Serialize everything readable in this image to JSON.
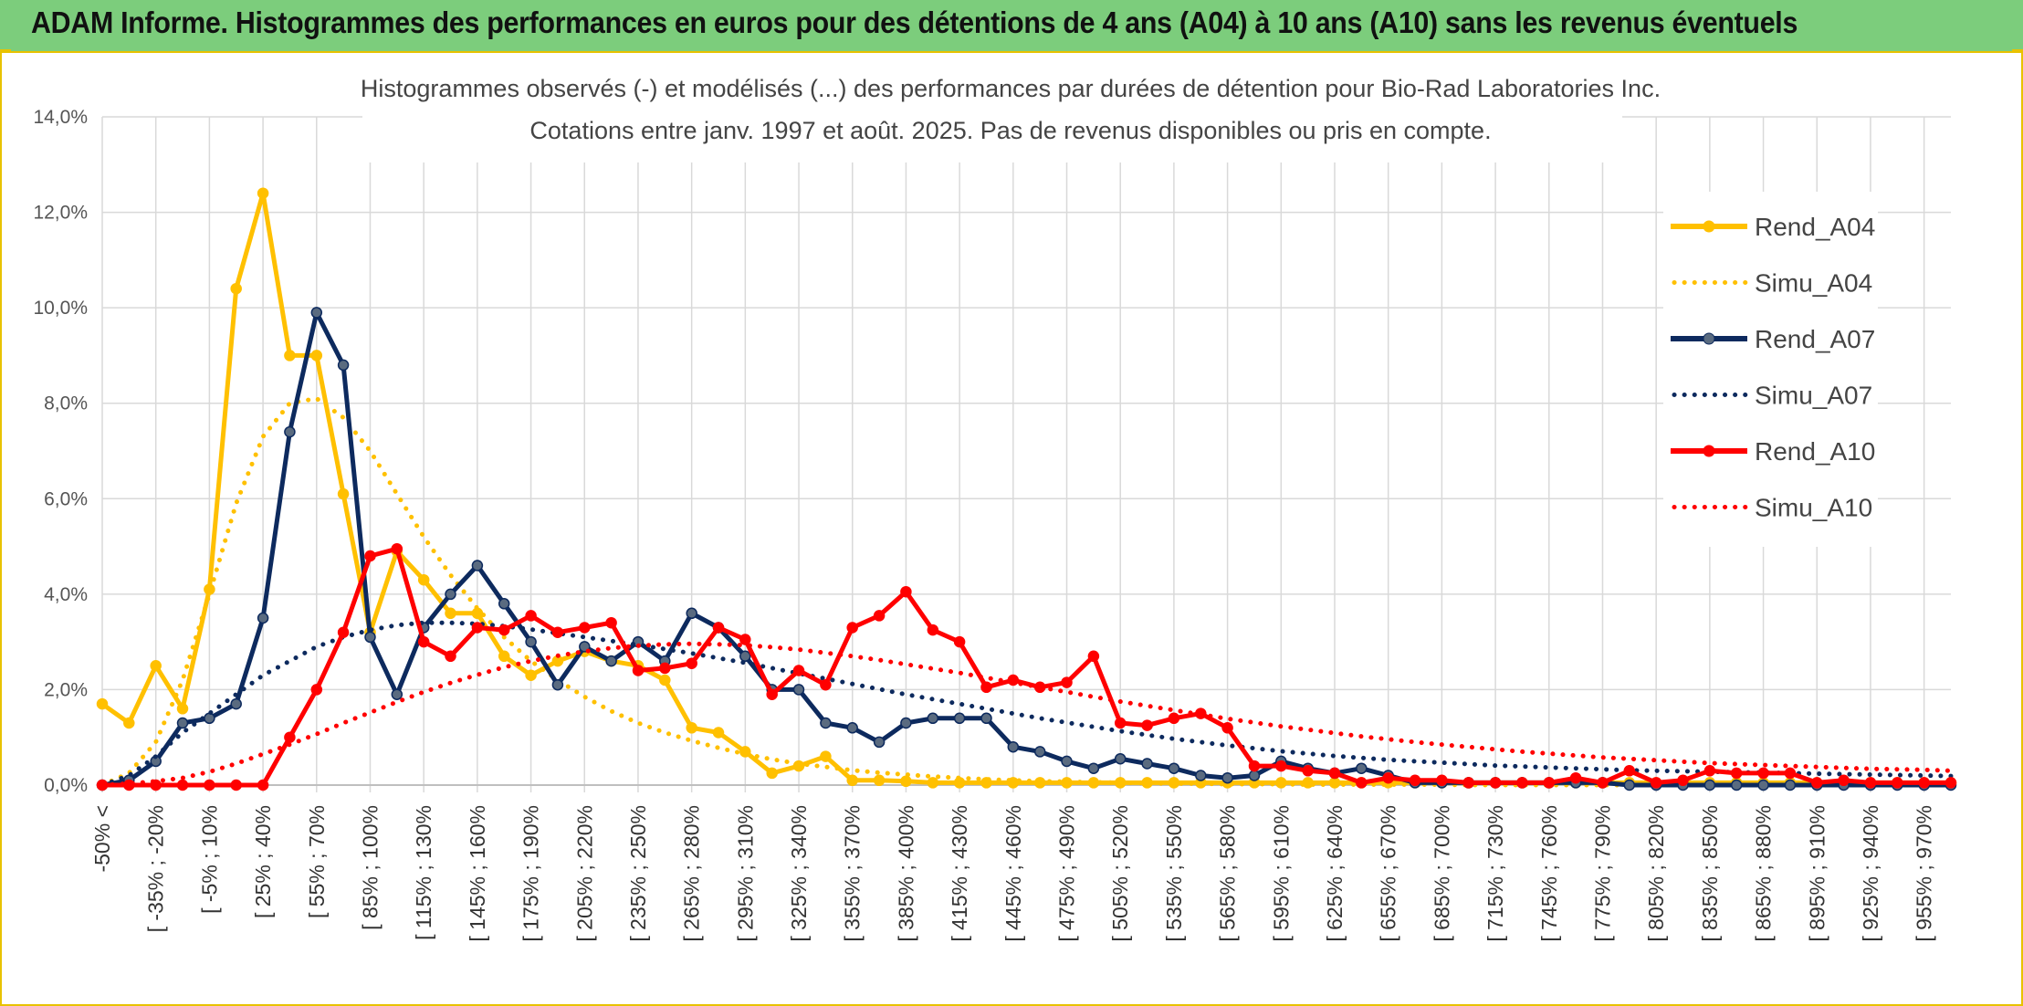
{
  "header": {
    "title": "ADAM Informe. Histogrammes des performances en euros pour des détentions de 4 ans (A04) à 10 ans (A10) sans les revenus éventuels"
  },
  "colors": {
    "header_bg": "#7ccd7c",
    "accent": "#e8c200",
    "A04": "#ffc000",
    "A07": "#0d2a5e",
    "A10": "#ff0000",
    "grid": "#d9d9d9"
  },
  "chart_data": {
    "type": "line",
    "title": "Histogrammes observés (-) et modélisés (...) des performances par durées de détention pour Bio-Rad Laboratories Inc.",
    "subtitle": "Cotations entre janv. 1997 et août. 2025. Pas de revenus disponibles ou pris en compte.",
    "xlabel": "",
    "ylabel": "",
    "ylim": [
      0,
      14
    ],
    "y_ticks": [
      "0,0%",
      "2,0%",
      "4,0%",
      "6,0%",
      "8,0%",
      "10,0%",
      "12,0%",
      "14,0%"
    ],
    "grid": true,
    "legend_position": "right",
    "x_tick_labels": [
      "-50% <",
      "[ -35% ; -20%",
      "[ -5% ; 10%",
      "[ 25% ; 40%",
      "[ 55% ; 70%",
      "[ 85% ; 100%",
      "[ 115% ; 130%",
      "[ 145% ; 160%",
      "[ 175% ; 190%",
      "[ 205% ; 220%",
      "[ 235% ; 250%",
      "[ 265% ; 280%",
      "[ 295% ; 310%",
      "[ 325% ; 340%",
      "[ 355% ; 370%",
      "[ 385% ; 400%",
      "[ 415% ; 430%",
      "[ 445% ; 460%",
      "[ 475% ; 490%",
      "[ 505% ; 520%",
      "[ 535% ; 550%",
      "[ 565% ; 580%",
      "[ 595% ; 610%",
      "[ 625% ; 640%",
      "[ 655% ; 670%",
      "[ 685% ; 700%",
      "[ 715% ; 730%",
      "[ 745% ; 760%",
      "[ 775% ; 790%",
      "[ 805% ; 820%",
      "[ 835% ; 850%",
      "[ 865% ; 880%",
      "[ 895% ; 910%",
      "[ 925% ; 940%",
      "[ 955% ; 970%"
    ],
    "n_categories": 70,
    "series": [
      {
        "name": "Rend_A04",
        "style": "solid",
        "color": "#ffc000",
        "values": [
          1.7,
          1.3,
          2.5,
          1.6,
          4.1,
          10.4,
          12.4,
          9.0,
          9.0,
          6.1,
          3.2,
          4.9,
          4.3,
          3.6,
          3.6,
          2.7,
          2.3,
          2.6,
          2.8,
          2.6,
          2.5,
          2.2,
          1.2,
          1.1,
          0.7,
          0.25,
          0.4,
          0.6,
          0.1,
          0.1,
          0.08,
          0.05,
          0.05,
          0.05,
          0.05,
          0.05,
          0.05,
          0.05,
          0.05,
          0.05,
          0.05,
          0.05,
          0.05,
          0.05,
          0.05,
          0.05,
          0.05,
          0.05,
          0.05,
          0.05,
          0.05,
          0.05,
          0.05,
          0.05,
          0.05,
          0.05,
          0.05,
          0.05,
          0.05,
          0.05,
          0.05,
          0.05,
          0.05,
          0.05,
          0.05,
          0.05,
          0.05,
          0.05,
          0.05,
          0.05
        ]
      },
      {
        "name": "Simu_A04",
        "style": "dotted",
        "color": "#ffc000",
        "values": [
          0.0,
          0.25,
          0.9,
          2.2,
          4.0,
          5.9,
          7.3,
          8.0,
          8.1,
          7.7,
          7.0,
          6.1,
          5.2,
          4.4,
          3.7,
          3.1,
          2.6,
          2.2,
          1.85,
          1.55,
          1.3,
          1.1,
          0.93,
          0.78,
          0.65,
          0.54,
          0.45,
          0.38,
          0.31,
          0.26,
          0.22,
          0.18,
          0.15,
          0.12,
          0.1,
          0.08,
          0.07,
          0.06,
          0.05,
          0.04,
          0.03,
          0.03,
          0.02,
          0.02,
          0.02,
          0.01,
          0.01,
          0.01,
          0.01,
          0.01,
          0.01,
          0.0,
          0.0,
          0.0,
          0.0,
          0.0,
          0.0,
          0.0,
          0.0,
          0.0,
          0.0,
          0.0,
          0.0,
          0.0,
          0.0,
          0.0,
          0.0,
          0.0,
          0.0,
          0.0
        ]
      },
      {
        "name": "Rend_A07",
        "style": "solid",
        "color": "#0d2a5e",
        "values": [
          0.0,
          0.1,
          0.5,
          1.3,
          1.4,
          1.7,
          3.5,
          7.4,
          9.9,
          8.8,
          3.1,
          1.9,
          3.3,
          4.0,
          4.6,
          3.8,
          3.0,
          2.1,
          2.9,
          2.6,
          3.0,
          2.6,
          3.6,
          3.3,
          2.7,
          2.0,
          2.0,
          1.3,
          1.2,
          0.9,
          1.3,
          1.4,
          1.4,
          1.4,
          0.8,
          0.7,
          0.5,
          0.35,
          0.55,
          0.45,
          0.35,
          0.2,
          0.15,
          0.2,
          0.5,
          0.35,
          0.25,
          0.35,
          0.2,
          0.05,
          0.05,
          0.05,
          0.05,
          0.05,
          0.05,
          0.05,
          0.05,
          0.0,
          0.0,
          0.0,
          0.0,
          0.0,
          0.0,
          0.0,
          0.0,
          0.0,
          0.0,
          0.0,
          0.0,
          0.0
        ]
      },
      {
        "name": "Simu_A07",
        "style": "dotted",
        "color": "#0d2a5e",
        "values": [
          0.0,
          0.2,
          0.6,
          1.1,
          1.5,
          1.9,
          2.3,
          2.6,
          2.9,
          3.1,
          3.25,
          3.35,
          3.4,
          3.4,
          3.38,
          3.33,
          3.26,
          3.18,
          3.1,
          3.02,
          2.94,
          2.85,
          2.76,
          2.66,
          2.56,
          2.45,
          2.34,
          2.23,
          2.12,
          2.01,
          1.9,
          1.8,
          1.7,
          1.6,
          1.5,
          1.4,
          1.31,
          1.22,
          1.13,
          1.05,
          0.97,
          0.9,
          0.83,
          0.77,
          0.71,
          0.66,
          0.61,
          0.57,
          0.53,
          0.5,
          0.47,
          0.44,
          0.41,
          0.39,
          0.37,
          0.35,
          0.33,
          0.31,
          0.3,
          0.29,
          0.28,
          0.27,
          0.26,
          0.25,
          0.24,
          0.23,
          0.22,
          0.21,
          0.2,
          0.19
        ]
      },
      {
        "name": "Rend_A10",
        "style": "solid",
        "color": "#ff0000",
        "values": [
          0.0,
          0.0,
          0.0,
          0.0,
          0.0,
          0.0,
          0.0,
          1.0,
          2.0,
          3.2,
          4.8,
          4.95,
          3.0,
          2.7,
          3.3,
          3.25,
          3.55,
          3.2,
          3.3,
          3.4,
          2.4,
          2.45,
          2.55,
          3.3,
          3.05,
          1.9,
          2.4,
          2.1,
          3.3,
          3.55,
          4.05,
          3.25,
          3.0,
          2.05,
          2.2,
          2.05,
          2.15,
          2.7,
          1.3,
          1.25,
          1.4,
          1.5,
          1.2,
          0.4,
          0.4,
          0.3,
          0.25,
          0.05,
          0.15,
          0.1,
          0.1,
          0.05,
          0.05,
          0.05,
          0.05,
          0.15,
          0.05,
          0.3,
          0.05,
          0.1,
          0.3,
          0.25,
          0.25,
          0.25,
          0.05,
          0.1,
          0.05,
          0.05,
          0.05,
          0.05
        ]
      },
      {
        "name": "Simu_A10",
        "style": "dotted",
        "color": "#ff0000",
        "values": [
          0.0,
          0.03,
          0.08,
          0.15,
          0.28,
          0.45,
          0.65,
          0.85,
          1.07,
          1.3,
          1.52,
          1.74,
          1.95,
          2.14,
          2.31,
          2.47,
          2.6,
          2.71,
          2.8,
          2.87,
          2.92,
          2.95,
          2.96,
          2.95,
          2.93,
          2.89,
          2.84,
          2.77,
          2.7,
          2.62,
          2.53,
          2.44,
          2.35,
          2.25,
          2.15,
          2.05,
          1.95,
          1.85,
          1.75,
          1.66,
          1.57,
          1.48,
          1.39,
          1.31,
          1.23,
          1.16,
          1.09,
          1.02,
          0.96,
          0.9,
          0.85,
          0.8,
          0.75,
          0.7,
          0.66,
          0.62,
          0.58,
          0.55,
          0.52,
          0.49,
          0.46,
          0.44,
          0.42,
          0.4,
          0.38,
          0.36,
          0.34,
          0.33,
          0.32,
          0.3
        ]
      }
    ]
  }
}
